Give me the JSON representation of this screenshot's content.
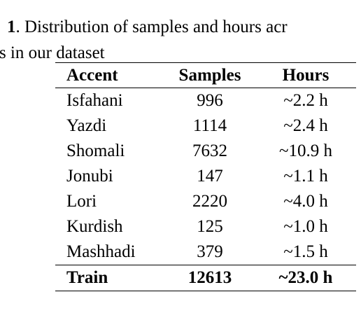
{
  "caption": {
    "number": "1",
    "line1_text": ".  Distribution of samples and hours acr",
    "line2_text": "ts in our dataset"
  },
  "table": {
    "headers": [
      "Accent",
      "Samples",
      "Hours"
    ],
    "rows": [
      {
        "accent": "Isfahani",
        "samples": "996",
        "hours": "~2.2 h"
      },
      {
        "accent": "Yazdi",
        "samples": "1114",
        "hours": "~2.4 h"
      },
      {
        "accent": "Shomali",
        "samples": "7632",
        "hours": "~10.9 h"
      },
      {
        "accent": "Jonubi",
        "samples": "147",
        "hours": "~1.1 h"
      },
      {
        "accent": "Lori",
        "samples": "2220",
        "hours": "~4.0 h"
      },
      {
        "accent": "Kurdish",
        "samples": "125",
        "hours": "~1.0 h"
      },
      {
        "accent": "Mashhadi",
        "samples": "379",
        "hours": "~1.5 h"
      }
    ],
    "total": {
      "accent": "Train",
      "samples": "12613",
      "hours": "~23.0 h"
    }
  }
}
